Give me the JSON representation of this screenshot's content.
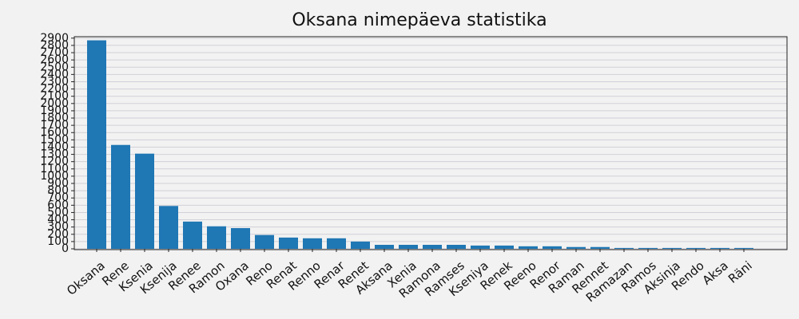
{
  "chart_data": {
    "type": "bar",
    "title": "Oksana nimepäeva statistika",
    "categories": [
      "Oksana",
      "Rene",
      "Ksenia",
      "Ksenija",
      "Renee",
      "Ramon",
      "Oxana",
      "Reno",
      "Renat",
      "Renno",
      "Renar",
      "Renet",
      "Aksana",
      "Xenia",
      "Ramona",
      "Ramses",
      "Kseniya",
      "Renek",
      "Reeno",
      "Renor",
      "Raman",
      "Rennet",
      "Ramazan",
      "Ramos",
      "Aksinja",
      "Rendo",
      "Aksa",
      "Räni"
    ],
    "values": [
      2870,
      1430,
      1310,
      590,
      375,
      310,
      285,
      190,
      155,
      145,
      145,
      100,
      55,
      55,
      55,
      55,
      45,
      45,
      35,
      35,
      25,
      25,
      12,
      12,
      12,
      12,
      12,
      12
    ],
    "color": "#1f77b4",
    "ylim": [
      0,
      2920
    ],
    "yticks": [
      0,
      100,
      200,
      300,
      400,
      500,
      600,
      700,
      800,
      900,
      1000,
      1100,
      1200,
      1300,
      1400,
      1500,
      1600,
      1700,
      1800,
      1900,
      2000,
      2100,
      2200,
      2300,
      2400,
      2500,
      2600,
      2700,
      2800,
      2900
    ],
    "grid": true
  }
}
